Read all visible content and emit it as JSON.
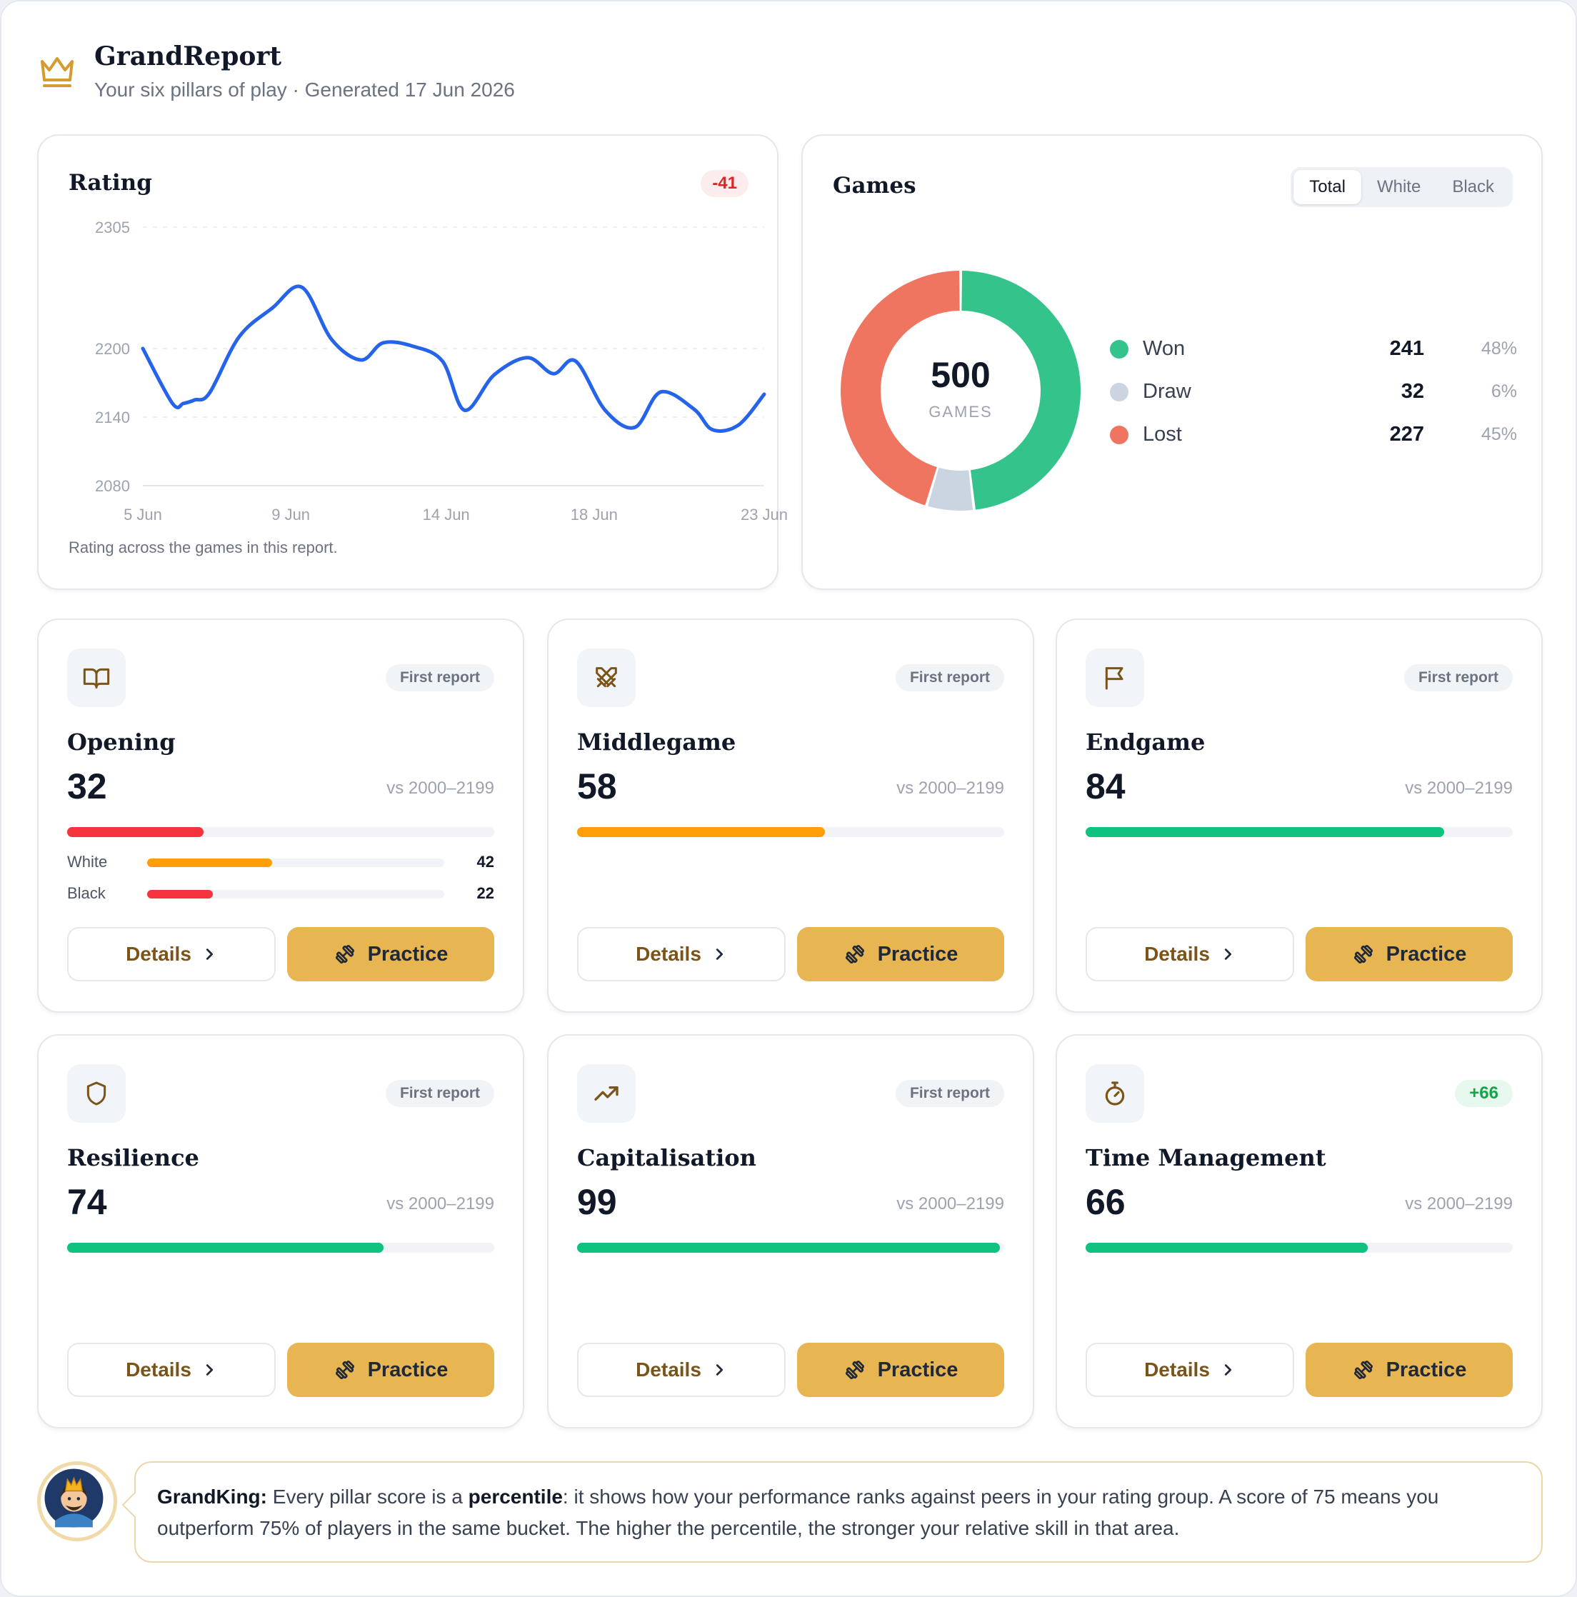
{
  "header": {
    "title": "GrandReport",
    "subtitle": "Your six pillars of play · Generated 17 Jun 2026"
  },
  "rating": {
    "title": "Rating",
    "delta": "-41",
    "note": "Rating across the games in this report.",
    "line_color": "#2563eb"
  },
  "chart_data": {
    "type": "line",
    "yticks": [
      2305,
      2200,
      2140,
      2080
    ],
    "ylim": [
      2080,
      2305
    ],
    "xticks": [
      "5 Jun",
      "9 Jun",
      "14 Jun",
      "18 Jun",
      "23 Jun"
    ],
    "series": [
      {
        "x": [
          0,
          0.8,
          1.1,
          1.4,
          1.8,
          2.6,
          3.5,
          4.3,
          5.1,
          5.9,
          6.5,
          7.3,
          8.1,
          8.7,
          9.5,
          10.4,
          11.1,
          11.7,
          12.5,
          13.3,
          14.0,
          14.9,
          15.4,
          16.1,
          16.8
        ],
        "values": [
          2200,
          2152,
          2152,
          2155,
          2161,
          2210,
          2235,
          2253,
          2208,
          2190,
          2205,
          2202,
          2189,
          2146,
          2177,
          2192,
          2178,
          2189,
          2146,
          2131,
          2162,
          2147,
          2129,
          2133,
          2160
        ]
      }
    ]
  },
  "games": {
    "title": "Games",
    "tabs": [
      "Total",
      "White",
      "Black"
    ],
    "active_tab": "Total",
    "total": "500",
    "total_label": "GAMES",
    "slices": [
      {
        "label": "Won",
        "count": "241",
        "pct": "48%",
        "value": 241,
        "color": "#34c48b"
      },
      {
        "label": "Draw",
        "count": "32",
        "pct": "6%",
        "value": 32,
        "color": "#cbd5e1"
      },
      {
        "label": "Lost",
        "count": "227",
        "pct": "45%",
        "value": 227,
        "color": "#f07560"
      }
    ]
  },
  "pillars": [
    {
      "name": "Opening",
      "score": "32",
      "fraction": 0.32,
      "color": "#f5333f",
      "badge": "First report",
      "vs": "vs 2000–2199",
      "icon": "book-icon",
      "sub": [
        {
          "label": "White",
          "value": "42",
          "fraction": 0.42,
          "color": "#ff9d0a"
        },
        {
          "label": "Black",
          "value": "22",
          "fraction": 0.22,
          "color": "#f5333f"
        }
      ]
    },
    {
      "name": "Middlegame",
      "score": "58",
      "fraction": 0.58,
      "color": "#ff9d0a",
      "badge": "First report",
      "vs": "vs 2000–2199",
      "icon": "swords-icon"
    },
    {
      "name": "Endgame",
      "score": "84",
      "fraction": 0.84,
      "color": "#0fc27f",
      "badge": "First report",
      "vs": "vs 2000–2199",
      "icon": "flag-icon"
    },
    {
      "name": "Resilience",
      "score": "74",
      "fraction": 0.74,
      "color": "#0fc27f",
      "badge": "First report",
      "vs": "vs 2000–2199",
      "icon": "shield-icon"
    },
    {
      "name": "Capitalisation",
      "score": "99",
      "fraction": 0.99,
      "color": "#0fc27f",
      "badge": "First report",
      "vs": "vs 2000–2199",
      "icon": "trend-up-icon"
    },
    {
      "name": "Time Management",
      "score": "66",
      "fraction": 0.66,
      "color": "#0fc27f",
      "badge": "+66",
      "vs": "vs 2000–2199",
      "icon": "stopwatch-icon"
    }
  ],
  "buttons": {
    "details": "Details",
    "practice": "Practice"
  },
  "tip": {
    "speaker": "GrandKing:",
    "text1": " Every pillar score is a ",
    "emph": "percentile",
    "text2": ": it shows how your performance ranks against peers in your rating group. A score of 75 means you outperform 75% of players in the same bucket. The higher the percentile, the stronger your relative skill in that area."
  }
}
